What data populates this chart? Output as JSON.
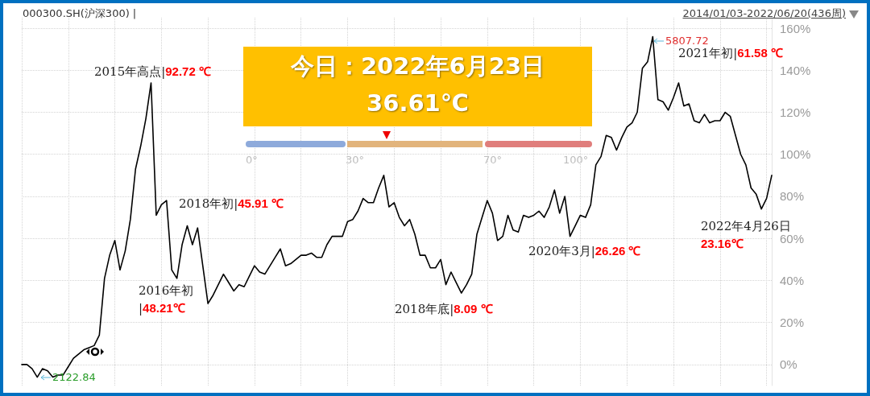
{
  "chart_data": {
    "type": "line",
    "title": "000300.SH(沪深300) |",
    "subtitle": "2014/01/03-2022/06/20(436周)",
    "categories": [
      null,
      null,
      null,
      null,
      null,
      null,
      null,
      null,
      null,
      null,
      null,
      null,
      null,
      null,
      null,
      null,
      null,
      null,
      null,
      null,
      null,
      null,
      null,
      null,
      null,
      null,
      null,
      null,
      null,
      null,
      null,
      null,
      null,
      null,
      null,
      null,
      null,
      null,
      null,
      null,
      null,
      null,
      null,
      null,
      null,
      null,
      null,
      null,
      null,
      null,
      null,
      null,
      null,
      null,
      null,
      null,
      null,
      null,
      null,
      null,
      null,
      null,
      null,
      null,
      null,
      null,
      null,
      null,
      null,
      null,
      null,
      null,
      null,
      null,
      null,
      null,
      null,
      null,
      null,
      null,
      null,
      null,
      null,
      null,
      null,
      null,
      null,
      null,
      null,
      null,
      null,
      null,
      null,
      null,
      null,
      null,
      null,
      null,
      null,
      null,
      null,
      null,
      null,
      null,
      null,
      null,
      null,
      null,
      null,
      null,
      null,
      null,
      null,
      null,
      null,
      null,
      null,
      null,
      null,
      null,
      null,
      null,
      null,
      null,
      null,
      null,
      null,
      null,
      null,
      null,
      null,
      null,
      null,
      null,
      null,
      null,
      null,
      null,
      null,
      null,
      null,
      null,
      null,
      null,
      null,
      null
    ],
    "series": [
      {
        "color": "#000000",
        "values": [
          0,
          0,
          -2,
          -6,
          -2,
          -3,
          -6,
          -5,
          -5,
          -1,
          3,
          5,
          7,
          8,
          9,
          14,
          41,
          52,
          59,
          45,
          54,
          69,
          93,
          104,
          117,
          134,
          71,
          76,
          78,
          45,
          41,
          57,
          66,
          57,
          65,
          47,
          29,
          33,
          38,
          43,
          39,
          35,
          38,
          37,
          42,
          47,
          44,
          43,
          47,
          51,
          55,
          47,
          48,
          50,
          52,
          52,
          53,
          51,
          51,
          57,
          61,
          61,
          61,
          68,
          69,
          73,
          79,
          77,
          77,
          84,
          90,
          75,
          77,
          70,
          66,
          69,
          62,
          52,
          52,
          46,
          46,
          50,
          38,
          44,
          39,
          34,
          38,
          43,
          62,
          70,
          78,
          72,
          59,
          61,
          71,
          64,
          63,
          71,
          70,
          71,
          73,
          70,
          75,
          83,
          72,
          80,
          61,
          66,
          71,
          70,
          76,
          95,
          99,
          109,
          108,
          102,
          108,
          113,
          115,
          120,
          141,
          144,
          156,
          126,
          125,
          121,
          127,
          134,
          123,
          124,
          116,
          115,
          119,
          115,
          116,
          116,
          120,
          118,
          109,
          100,
          95,
          84,
          81,
          74,
          79,
          90
        ]
      }
    ],
    "ylim": [
      -10,
      165
    ],
    "yticks": [
      {
        "value": 0,
        "label": "0%"
      },
      {
        "value": 20,
        "label": "20%"
      },
      {
        "value": 40,
        "label": "40%"
      },
      {
        "value": 60,
        "label": "60%"
      },
      {
        "value": 80,
        "label": "80%"
      },
      {
        "value": 100,
        "label": "100%"
      },
      {
        "value": 120,
        "label": "120%"
      },
      {
        "value": 140,
        "label": "140%"
      },
      {
        "value": 160,
        "label": "160%"
      }
    ],
    "grid": true,
    "tick_labels": "y",
    "marker": "none",
    "line_style": "solid",
    "annotations": [
      "2015年高点|92.72 ℃",
      "2018年初|45.91 ℃",
      "2016年初\n|48.21℃",
      "2018年底|8.09 ℃",
      "2020年3月|26.26 ℃",
      "2021年初|61.58 ℃",
      "2022年4月26日\n23.16℃",
      "5807.72",
      "2122.84",
      "今日：2022年6月23日",
      "36.61℃",
      "0°",
      "30°",
      "70°",
      "100°"
    ]
  }
}
